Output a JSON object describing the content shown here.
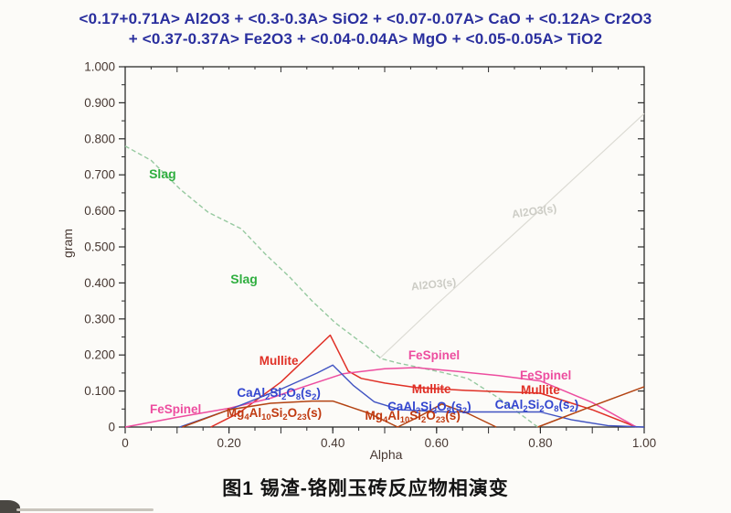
{
  "title": {
    "line1": "<0.17+0.71A> Al2O3 +  <0.3-0.3A> SiO2 +  <0.07-0.07A> CaO +  <0.12A> Cr2O3",
    "line2": "+ <0.37-0.37A> Fe2O3 +  <0.04-0.04A> MgO +  <0.05-0.05A> TiO2"
  },
  "caption": "图1 锡渣-铬刚玉砖反应物相演变",
  "chart_data": {
    "type": "line",
    "xlabel": "Alpha",
    "ylabel": "gram",
    "xlim": [
      0,
      1.0
    ],
    "ylim": [
      0,
      1.0
    ],
    "grid": false,
    "frame_color": "#2b2b2b",
    "tick_label_color": "#473832",
    "title_color": "#2a2f9e",
    "x_ticks": [
      {
        "label": "0",
        "value": 0
      },
      {
        "label": "0.20",
        "value": 0.2
      },
      {
        "label": "0.40",
        "value": 0.4
      },
      {
        "label": "0.60",
        "value": 0.6
      },
      {
        "label": "0.80",
        "value": 0.8
      },
      {
        "label": "1.00",
        "value": 1.0
      }
    ],
    "y_ticks": [
      {
        "label": "1.000",
        "value": 1.0
      },
      {
        "label": "0.900",
        "value": 0.9
      },
      {
        "label": "0.800",
        "value": 0.8
      },
      {
        "label": "0.700",
        "value": 0.7
      },
      {
        "label": "0.600",
        "value": 0.6
      },
      {
        "label": "0.500",
        "value": 0.5
      },
      {
        "label": "0.400",
        "value": 0.4
      },
      {
        "label": "0.300",
        "value": 0.3
      },
      {
        "label": "0.200",
        "value": 0.2
      },
      {
        "label": "0.100",
        "value": 0.1
      },
      {
        "label": "0",
        "value": 0
      }
    ],
    "minor_tick_step": 0.05,
    "series": [
      {
        "name": "Al2O3(s)",
        "color": "#dcdbd4",
        "width": 1.2,
        "segments": [
          [
            [
              0.49,
              0.19
            ],
            [
              0.6,
              0.34
            ],
            [
              0.79,
              0.59
            ],
            [
              1.0,
              0.87
            ]
          ]
        ]
      },
      {
        "name": "Slag",
        "color": "#96c9a0",
        "dash": "5 3",
        "width": 1.4,
        "segments": [
          [
            [
              0,
              0.78
            ],
            [
              0.05,
              0.74
            ],
            [
              0.106,
              0.66
            ],
            [
              0.16,
              0.596
            ],
            [
              0.224,
              0.55
            ],
            [
              0.27,
              0.48
            ],
            [
              0.317,
              0.416
            ],
            [
              0.36,
              0.35
            ],
            [
              0.405,
              0.289
            ],
            [
              0.463,
              0.226
            ],
            [
              0.493,
              0.19
            ],
            [
              0.525,
              0.178
            ],
            [
              0.6,
              0.155
            ],
            [
              0.66,
              0.135
            ],
            [
              0.72,
              0.08
            ],
            [
              0.795,
              0
            ]
          ]
        ]
      },
      {
        "name": "Mullite",
        "color": "#e03026",
        "width": 1.5,
        "segments": [
          [
            [
              0.165,
              0
            ],
            [
              0.22,
              0.04
            ],
            [
              0.3,
              0.125
            ],
            [
              0.355,
              0.2
            ],
            [
              0.395,
              0.255
            ],
            [
              0.43,
              0.155
            ],
            [
              0.455,
              0.135
            ],
            [
              0.5,
              0.122
            ],
            [
              0.56,
              0.11
            ],
            [
              0.65,
              0.102
            ],
            [
              0.74,
              0.097
            ],
            [
              0.8,
              0.094
            ],
            [
              0.9,
              0.048
            ],
            [
              0.985,
              0
            ]
          ]
        ]
      },
      {
        "name": "FeSpinel",
        "color": "#ed4d9f",
        "width": 1.5,
        "segments": [
          [
            [
              0,
              0
            ],
            [
              0.1,
              0.027
            ],
            [
              0.2,
              0.052
            ],
            [
              0.28,
              0.08
            ],
            [
              0.34,
              0.11
            ],
            [
              0.42,
              0.148
            ],
            [
              0.5,
              0.162
            ],
            [
              0.56,
              0.165
            ],
            [
              0.62,
              0.157
            ],
            [
              0.72,
              0.143
            ],
            [
              0.8,
              0.128
            ],
            [
              0.9,
              0.068
            ],
            [
              0.985,
              0
            ]
          ]
        ]
      },
      {
        "name": "CaAl2Si2O8(s2)",
        "color": "#4053c2",
        "width": 1.4,
        "segments": [
          [
            [
              0.105,
              0
            ],
            [
              0.2,
              0.048
            ],
            [
              0.3,
              0.105
            ],
            [
              0.37,
              0.15
            ],
            [
              0.4,
              0.172
            ],
            [
              0.44,
              0.115
            ],
            [
              0.48,
              0.07
            ],
            [
              0.53,
              0.048
            ],
            [
              0.62,
              0.042
            ],
            [
              0.8,
              0.042
            ],
            [
              0.86,
              0.02
            ],
            [
              0.93,
              0.004
            ],
            [
              1.0,
              0
            ]
          ]
        ]
      },
      {
        "name": "Mg4Al10Si2O23(s)",
        "color": "#b34312",
        "width": 1.5,
        "segments": [
          [
            [
              0.11,
              0
            ],
            [
              0.2,
              0.048
            ],
            [
              0.28,
              0.066
            ],
            [
              0.36,
              0.072
            ],
            [
              0.4,
              0.072
            ],
            [
              0.47,
              0.038
            ],
            [
              0.525,
              0
            ]
          ],
          [
            [
              0.525,
              0
            ],
            [
              0.565,
              0.028
            ],
            [
              0.61,
              0.064
            ],
            [
              0.66,
              0.038
            ],
            [
              0.715,
              0
            ]
          ],
          [
            [
              0.795,
              0
            ],
            [
              0.9,
              0.058
            ],
            [
              1.0,
              0.112
            ]
          ]
        ]
      }
    ],
    "annotations": [
      {
        "text": "Slag",
        "x": 0.072,
        "y": 0.69,
        "color": "#2fae3f",
        "size": 14
      },
      {
        "text": "Slag",
        "x": 0.229,
        "y": 0.398,
        "color": "#2fae3f",
        "size": 14
      },
      {
        "text": "Mullite",
        "x": 0.296,
        "y": 0.173,
        "color": "#e03026",
        "size": 13.5
      },
      {
        "text": "Mullite",
        "x": 0.59,
        "y": 0.094,
        "color": "#e03026",
        "size": 13.5
      },
      {
        "text": "Mullite",
        "x": 0.8,
        "y": 0.091,
        "color": "#e03026",
        "size": 13.5
      },
      {
        "text": "FeSpinel",
        "x": 0.097,
        "y": 0.038,
        "color": "#ed4d9f",
        "size": 13.5
      },
      {
        "text": "FeSpinel",
        "x": 0.595,
        "y": 0.188,
        "color": "#ed4d9f",
        "size": 13.5
      },
      {
        "text": "FeSpinel",
        "x": 0.81,
        "y": 0.132,
        "color": "#ed4d9f",
        "size": 13.5
      },
      {
        "text": "CaAl_2_Si_2_O_8_(s_2_)",
        "x": 0.296,
        "y": 0.084,
        "color": "#3346cf",
        "size": 13.5
      },
      {
        "text": "CaAl_2_Si_2_O_8_(s_2_)",
        "x": 0.586,
        "y": 0.046,
        "color": "#3346cf",
        "size": 13.5
      },
      {
        "text": "CaAl_2_Si_2_O_8_(s_2_)",
        "x": 0.793,
        "y": 0.051,
        "color": "#3346cf",
        "size": 13.5
      },
      {
        "text": "Mg_4_Al_10_Si_2_O_23_(s)",
        "x": 0.287,
        "y": 0.028,
        "color": "#c03a10",
        "size": 13.5
      },
      {
        "text": "Mg_4_Al_10_Si_2_O_23_(s)",
        "x": 0.554,
        "y": 0.02,
        "color": "#c03a10",
        "size": 13.5
      },
      {
        "text": "Al2O3(s)",
        "x": 0.595,
        "y": 0.386,
        "color": "#ccccc5",
        "size": 12,
        "rotate": -6
      },
      {
        "text": "Al2O3(s)",
        "x": 0.789,
        "y": 0.589,
        "color": "#ccccc5",
        "size": 12,
        "rotate": -8
      }
    ]
  }
}
